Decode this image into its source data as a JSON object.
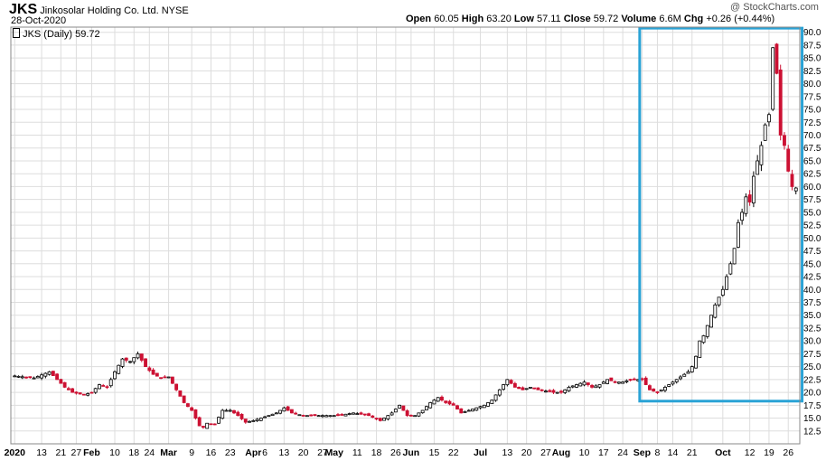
{
  "header": {
    "symbol": "JKS",
    "company": "Jinkosolar Holding Co. Ltd.",
    "exchange": "NYSE",
    "date": "28-Oct-2020",
    "watermark": "@ StockCharts.com",
    "quote": {
      "open_label": "Open",
      "open": "60.05",
      "high_label": "High",
      "high": "63.20",
      "low_label": "Low",
      "low": "57.11",
      "close_label": "Close",
      "close": "59.72",
      "volume_label": "Volume",
      "volume": "6.6M",
      "chg_label": "Chg",
      "chg": "+0.26 (+0.44%)"
    },
    "legend": "JKS (Daily) 59.72"
  },
  "colors": {
    "up": "#000000",
    "down": "#cc1133",
    "grid": "#dddddd",
    "highlight": "#2aa3d6"
  },
  "chart_data": {
    "type": "candlestick",
    "title": "JKS Jinkosolar Holding Co. Ltd. NYSE",
    "legend": [
      "JKS (Daily) 59.72"
    ],
    "ylim": [
      10,
      91
    ],
    "y_ticks": [
      "12.5",
      "15.0",
      "17.5",
      "20.0",
      "22.5",
      "25.0",
      "27.5",
      "30.0",
      "32.5",
      "35.0",
      "37.5",
      "40.0",
      "42.5",
      "45.0",
      "47.5",
      "50.0",
      "52.5",
      "55.0",
      "57.5",
      "60.0",
      "62.5",
      "65.0",
      "67.5",
      "70.0",
      "72.5",
      "75.0",
      "77.5",
      "80.0",
      "82.5",
      "85.0",
      "87.5",
      "90.0"
    ],
    "x_ticks": [
      {
        "i": 0,
        "label": "2020",
        "bold": true
      },
      {
        "i": 7,
        "label": "13",
        "bold": false
      },
      {
        "i": 12,
        "label": "21",
        "bold": false
      },
      {
        "i": 16,
        "label": "27",
        "bold": false
      },
      {
        "i": 20,
        "label": "Feb",
        "bold": true
      },
      {
        "i": 26,
        "label": "10",
        "bold": false
      },
      {
        "i": 31,
        "label": "18",
        "bold": false
      },
      {
        "i": 35,
        "label": "24",
        "bold": false
      },
      {
        "i": 40,
        "label": "Mar",
        "bold": true
      },
      {
        "i": 46,
        "label": "9",
        "bold": false
      },
      {
        "i": 51,
        "label": "16",
        "bold": false
      },
      {
        "i": 56,
        "label": "23",
        "bold": false
      },
      {
        "i": 62,
        "label": "Apr",
        "bold": true
      },
      {
        "i": 65,
        "label": "6",
        "bold": false
      },
      {
        "i": 70,
        "label": "13",
        "bold": false
      },
      {
        "i": 75,
        "label": "20",
        "bold": false
      },
      {
        "i": 80,
        "label": "27",
        "bold": false
      },
      {
        "i": 83,
        "label": "May",
        "bold": true
      },
      {
        "i": 89,
        "label": "11",
        "bold": false
      },
      {
        "i": 94,
        "label": "18",
        "bold": false
      },
      {
        "i": 99,
        "label": "26",
        "bold": false
      },
      {
        "i": 103,
        "label": "Jun",
        "bold": true
      },
      {
        "i": 109,
        "label": "15",
        "bold": false
      },
      {
        "i": 114,
        "label": "22",
        "bold": false
      },
      {
        "i": 121,
        "label": "Jul",
        "bold": true
      },
      {
        "i": 128,
        "label": "13",
        "bold": false
      },
      {
        "i": 133,
        "label": "20",
        "bold": false
      },
      {
        "i": 138,
        "label": "27",
        "bold": false
      },
      {
        "i": 142,
        "label": "Aug",
        "bold": true
      },
      {
        "i": 148,
        "label": "10",
        "bold": false
      },
      {
        "i": 153,
        "label": "17",
        "bold": false
      },
      {
        "i": 158,
        "label": "24",
        "bold": false
      },
      {
        "i": 163,
        "label": "Sep",
        "bold": true
      },
      {
        "i": 167,
        "label": "8",
        "bold": false
      },
      {
        "i": 171,
        "label": "14",
        "bold": false
      },
      {
        "i": 176,
        "label": "21",
        "bold": false
      },
      {
        "i": 184,
        "label": "Oct",
        "bold": true
      },
      {
        "i": 191,
        "label": "12",
        "bold": false
      },
      {
        "i": 196,
        "label": "19",
        "bold": false
      },
      {
        "i": 201,
        "label": "26",
        "bold": false
      }
    ],
    "anchors": [
      [
        0,
        23.2
      ],
      [
        5,
        22.8
      ],
      [
        9,
        24.0
      ],
      [
        13,
        21.0
      ],
      [
        15,
        20.0
      ],
      [
        18,
        19.5
      ],
      [
        20,
        20.0
      ],
      [
        22,
        21.5
      ],
      [
        24,
        21.0
      ],
      [
        26,
        24.0
      ],
      [
        28,
        26.5
      ],
      [
        30,
        26.0
      ],
      [
        32,
        27.5
      ],
      [
        34,
        25.0
      ],
      [
        36,
        23.5
      ],
      [
        38,
        22.8
      ],
      [
        40,
        23.0
      ],
      [
        42,
        20.5
      ],
      [
        44,
        18.0
      ],
      [
        46,
        16.5
      ],
      [
        48,
        13.5
      ],
      [
        49,
        13.2
      ],
      [
        50,
        14.0
      ],
      [
        52,
        13.8
      ],
      [
        54,
        16.5
      ],
      [
        56,
        16.5
      ],
      [
        58,
        15.5
      ],
      [
        60,
        14.2
      ],
      [
        62,
        14.5
      ],
      [
        64,
        15.0
      ],
      [
        66,
        15.5
      ],
      [
        68,
        16.0
      ],
      [
        70,
        17.0
      ],
      [
        72,
        16.0
      ],
      [
        75,
        15.5
      ],
      [
        80,
        15.5
      ],
      [
        84,
        15.5
      ],
      [
        88,
        16.0
      ],
      [
        92,
        15.5
      ],
      [
        95,
        14.5
      ],
      [
        98,
        16.0
      ],
      [
        100,
        17.5
      ],
      [
        102,
        15.5
      ],
      [
        104,
        15.5
      ],
      [
        106,
        16.5
      ],
      [
        108,
        18.0
      ],
      [
        110,
        19.0
      ],
      [
        112,
        18.0
      ],
      [
        114,
        17.5
      ],
      [
        116,
        16.0
      ],
      [
        118,
        16.5
      ],
      [
        120,
        17.0
      ],
      [
        122,
        17.5
      ],
      [
        124,
        18.5
      ],
      [
        126,
        20.5
      ],
      [
        128,
        22.5
      ],
      [
        130,
        21.0
      ],
      [
        132,
        20.5
      ],
      [
        134,
        21.0
      ],
      [
        136,
        20.5
      ],
      [
        140,
        20.0
      ],
      [
        142,
        20.0
      ],
      [
        144,
        21.0
      ],
      [
        146,
        21.5
      ],
      [
        148,
        22.0
      ],
      [
        150,
        21.0
      ],
      [
        152,
        21.5
      ],
      [
        154,
        22.5
      ],
      [
        156,
        22.0
      ],
      [
        158,
        22.0
      ],
      [
        160,
        22.5
      ],
      [
        162,
        22.5
      ],
      [
        163,
        22.5
      ],
      [
        165,
        20.5
      ],
      [
        167,
        20.0
      ],
      [
        169,
        21.0
      ],
      [
        171,
        22.0
      ],
      [
        173,
        23.0
      ],
      [
        175,
        24.0
      ],
      [
        176,
        25.0
      ],
      [
        177,
        27.0
      ],
      [
        178,
        30.0
      ],
      [
        179,
        31.0
      ],
      [
        180,
        33.0
      ],
      [
        181,
        35.0
      ],
      [
        182,
        37.0
      ],
      [
        184,
        40.0
      ],
      [
        186,
        45.0
      ],
      [
        187,
        48.0
      ],
      [
        188,
        53.0
      ],
      [
        189,
        55.0
      ],
      [
        190,
        58.0
      ],
      [
        191,
        57.0
      ],
      [
        192,
        62.0
      ],
      [
        193,
        65.0
      ],
      [
        194,
        68.0
      ],
      [
        195,
        72.0
      ],
      [
        196,
        74.0
      ],
      [
        197,
        87.0
      ],
      [
        198,
        82.0
      ],
      [
        199,
        70.0
      ],
      [
        200,
        68.0
      ],
      [
        201,
        63.0
      ],
      [
        202,
        60.0
      ],
      [
        203,
        59.72
      ]
    ],
    "highlight_box": {
      "i_start": 163,
      "i_end": 204,
      "y_low": 18.3,
      "y_high": 90.8
    }
  }
}
